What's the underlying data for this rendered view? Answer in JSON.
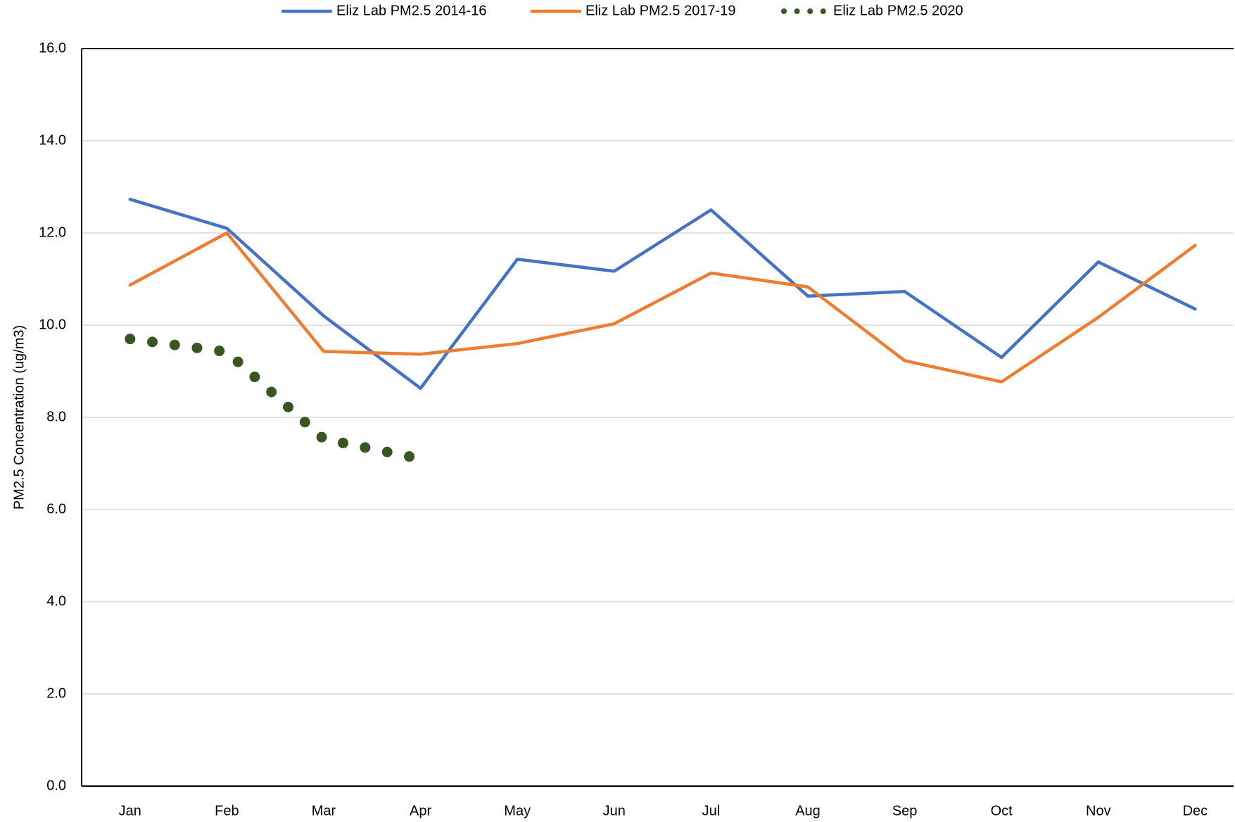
{
  "chart_data": {
    "type": "line",
    "y_label": "PM2.5 Concentration (ug/m3)",
    "categories": [
      "Jan",
      "Feb",
      "Mar",
      "Apr",
      "May",
      "Jun",
      "Jul",
      "Aug",
      "Sep",
      "Oct",
      "Nov",
      "Dec"
    ],
    "series": [
      {
        "name": "Eliz Lab PM2.5 2014-16",
        "color": "#4472c4",
        "style": "solid",
        "values": [
          12.73,
          12.1,
          10.2,
          8.63,
          11.43,
          11.17,
          12.5,
          10.63,
          10.73,
          9.3,
          11.37,
          10.35
        ]
      },
      {
        "name": "Eliz Lab PM2.5 2017-19",
        "color": "#ed7d31",
        "style": "solid",
        "values": [
          10.87,
          12.0,
          9.43,
          9.37,
          9.6,
          10.03,
          11.13,
          10.83,
          9.23,
          8.77,
          10.17,
          11.73
        ]
      },
      {
        "name": "Eliz Lab PM2.5 2020",
        "color": "#375623",
        "style": "dotted",
        "values": [
          9.7,
          9.42,
          7.53,
          7.1,
          null,
          null,
          null,
          null,
          null,
          null,
          null,
          null
        ]
      }
    ],
    "ylim": [
      0,
      16
    ],
    "yticks": [
      {
        "value": 0,
        "label": "0.0"
      },
      {
        "value": 2,
        "label": "2.0"
      },
      {
        "value": 4,
        "label": "4.0"
      },
      {
        "value": 6,
        "label": "6.0"
      },
      {
        "value": 8,
        "label": "8.0"
      },
      {
        "value": 10,
        "label": "10.0"
      },
      {
        "value": 12,
        "label": "12.0"
      },
      {
        "value": 14,
        "label": "14.0"
      },
      {
        "value": 16,
        "label": "16.0"
      }
    ],
    "grid": true,
    "legend": "top"
  }
}
